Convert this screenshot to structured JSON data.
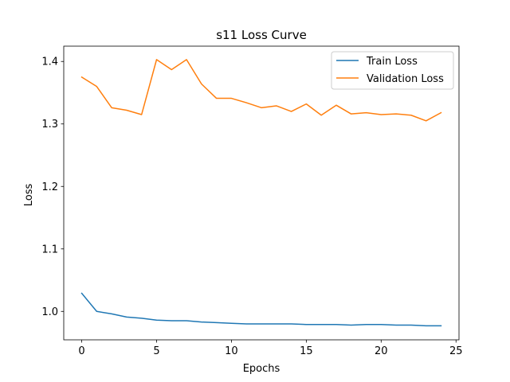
{
  "chart_data": {
    "type": "line",
    "title": "s11 Loss Curve",
    "xlabel": "Epochs",
    "ylabel": "Loss",
    "xlim": [
      -1.2,
      25.2
    ],
    "ylim": [
      0.9545,
      1.4245
    ],
    "xticks": [
      0,
      5,
      10,
      15,
      20,
      25
    ],
    "xtick_labels": [
      "0",
      "5",
      "10",
      "15",
      "20",
      "25"
    ],
    "yticks": [
      1.0,
      1.1,
      1.2,
      1.3,
      1.4
    ],
    "ytick_labels": [
      "1.0",
      "1.1",
      "1.2",
      "1.3",
      "1.4"
    ],
    "grid": false,
    "legend_position": "top-right",
    "x": [
      0,
      1,
      2,
      3,
      4,
      5,
      6,
      7,
      8,
      9,
      10,
      11,
      12,
      13,
      14,
      15,
      16,
      17,
      18,
      19,
      20,
      21,
      22,
      23,
      24
    ],
    "series": [
      {
        "name": "Train Loss",
        "color": "#1f77b4",
        "values": [
          1.029,
          1.0,
          0.996,
          0.991,
          0.989,
          0.986,
          0.985,
          0.985,
          0.983,
          0.982,
          0.981,
          0.98,
          0.98,
          0.98,
          0.98,
          0.979,
          0.979,
          0.979,
          0.978,
          0.979,
          0.979,
          0.978,
          0.978,
          0.977,
          0.977
        ]
      },
      {
        "name": "Validation Loss",
        "color": "#ff7f0e",
        "values": [
          1.375,
          1.36,
          1.326,
          1.322,
          1.315,
          1.403,
          1.387,
          1.403,
          1.364,
          1.341,
          1.341,
          1.334,
          1.326,
          1.329,
          1.32,
          1.332,
          1.314,
          1.33,
          1.316,
          1.318,
          1.315,
          1.316,
          1.314,
          1.305,
          1.318
        ]
      }
    ]
  }
}
